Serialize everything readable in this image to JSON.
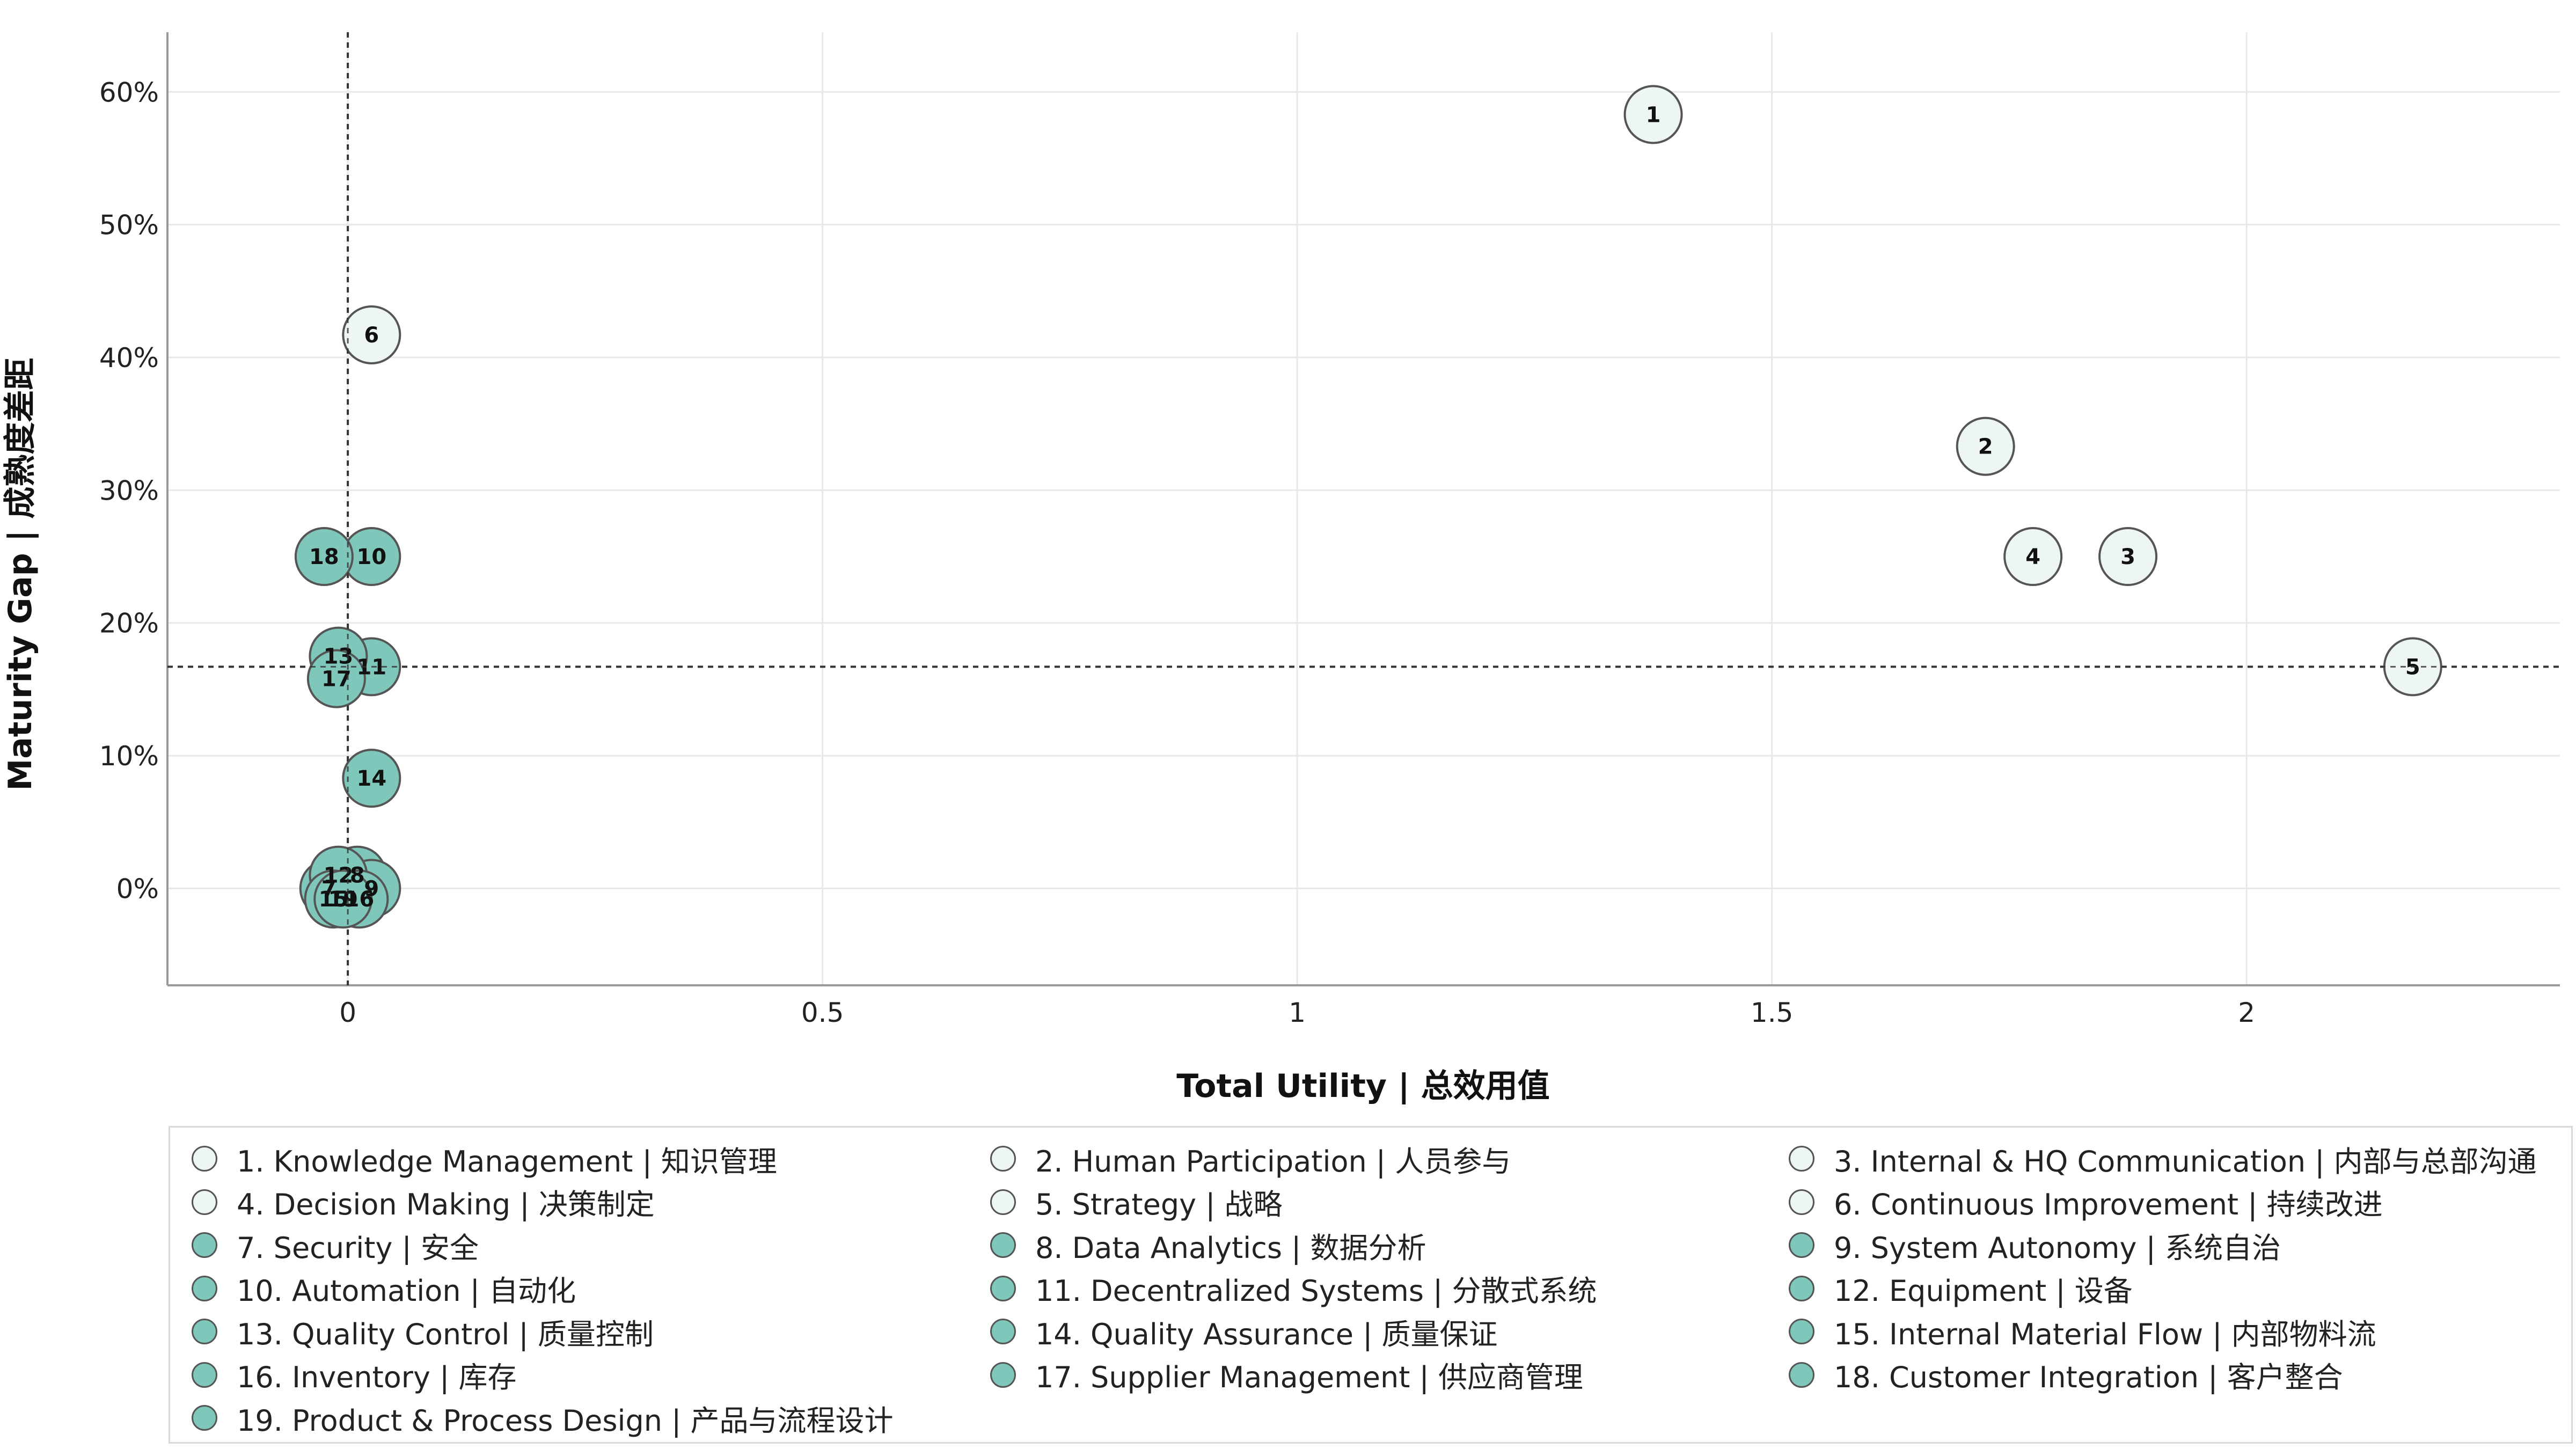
{
  "chart_data": {
    "type": "scatter",
    "xlabel": "Total Utility | 总效用值",
    "ylabel": "Maturity Gap | 成熟度差距",
    "xlim": [
      -0.19,
      2.33
    ],
    "ylim": [
      -0.073,
      0.645
    ],
    "x_ticks": [
      0,
      0.5,
      1,
      1.5,
      2
    ],
    "x_tick_labels": [
      "0",
      "0.5",
      "1",
      "1.5",
      "2"
    ],
    "y_ticks": [
      0,
      0.1,
      0.2,
      0.3,
      0.4,
      0.5,
      0.6
    ],
    "y_tick_labels": [
      "0%",
      "10%",
      "20%",
      "30%",
      "40%",
      "50%",
      "60%"
    ],
    "grid": true,
    "reference_lines": {
      "x": 0,
      "y": 0.167
    },
    "colors": {
      "group_a": "#eef6f4",
      "group_b": "#7fc7bb",
      "marker_edge": "#555555"
    },
    "points": [
      {
        "id": "1",
        "x": 1.375,
        "y": 0.583,
        "group": "a"
      },
      {
        "id": "2",
        "x": 1.725,
        "y": 0.333,
        "group": "a"
      },
      {
        "id": "3",
        "x": 1.875,
        "y": 0.25,
        "group": "a"
      },
      {
        "id": "4",
        "x": 1.775,
        "y": 0.25,
        "group": "a"
      },
      {
        "id": "5",
        "x": 2.175,
        "y": 0.167,
        "group": "a"
      },
      {
        "id": "6",
        "x": 0.025,
        "y": 0.417,
        "group": "a"
      },
      {
        "id": "7",
        "x": -0.02,
        "y": 0.0,
        "group": "b"
      },
      {
        "id": "8",
        "x": 0.01,
        "y": 0.01,
        "group": "b"
      },
      {
        "id": "9",
        "x": 0.025,
        "y": 0.0,
        "group": "b"
      },
      {
        "id": "10",
        "x": 0.025,
        "y": 0.25,
        "group": "b"
      },
      {
        "id": "11",
        "x": 0.025,
        "y": 0.167,
        "group": "b"
      },
      {
        "id": "12",
        "x": -0.01,
        "y": 0.01,
        "group": "b"
      },
      {
        "id": "13",
        "x": -0.01,
        "y": 0.175,
        "group": "b"
      },
      {
        "id": "14",
        "x": 0.025,
        "y": 0.083,
        "group": "b"
      },
      {
        "id": "15",
        "x": -0.015,
        "y": -0.008,
        "group": "b"
      },
      {
        "id": "16",
        "x": 0.012,
        "y": -0.008,
        "group": "b"
      },
      {
        "id": "17",
        "x": -0.012,
        "y": 0.158,
        "group": "b"
      },
      {
        "id": "18",
        "x": -0.025,
        "y": 0.25,
        "group": "b"
      },
      {
        "id": "19",
        "x": -0.005,
        "y": -0.008,
        "group": "b"
      }
    ]
  },
  "legend": [
    {
      "label": "1. Knowledge Management | 知识管理",
      "group": "a"
    },
    {
      "label": "2. Human Participation | 人员参与",
      "group": "a"
    },
    {
      "label": "3. Internal & HQ Communication | 内部与总部沟通",
      "group": "a"
    },
    {
      "label": "4. Decision Making | 决策制定",
      "group": "a"
    },
    {
      "label": "5. Strategy | 战略",
      "group": "a"
    },
    {
      "label": "6. Continuous Improvement | 持续改进",
      "group": "a"
    },
    {
      "label": "7. Security | 安全",
      "group": "b"
    },
    {
      "label": "8. Data Analytics | 数据分析",
      "group": "b"
    },
    {
      "label": "9. System Autonomy | 系统自治",
      "group": "b"
    },
    {
      "label": "10. Automation | 自动化",
      "group": "b"
    },
    {
      "label": "11. Decentralized Systems | 分散式系统",
      "group": "b"
    },
    {
      "label": "12. Equipment | 设备",
      "group": "b"
    },
    {
      "label": "13. Quality Control | 质量控制",
      "group": "b"
    },
    {
      "label": "14. Quality Assurance | 质量保证",
      "group": "b"
    },
    {
      "label": "15. Internal Material Flow | 内部物料流",
      "group": "b"
    },
    {
      "label": "16. Inventory | 库存",
      "group": "b"
    },
    {
      "label": "17. Supplier Management | 供应商管理",
      "group": "b"
    },
    {
      "label": "18. Customer Integration | 客户整合",
      "group": "b"
    },
    {
      "label": "19. Product & Process Design | 产品与流程设计",
      "group": "b"
    }
  ]
}
